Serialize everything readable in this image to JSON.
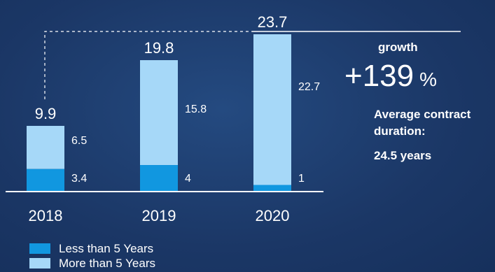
{
  "chart_data": {
    "type": "bar",
    "stacked": true,
    "categories": [
      "2018",
      "2019",
      "2020"
    ],
    "series": [
      {
        "name": "Less than 5 Years",
        "values": [
          3.4,
          4,
          1
        ],
        "color": "#1197e0"
      },
      {
        "name": "More than 5 Years",
        "values": [
          6.5,
          15.8,
          22.7
        ],
        "color": "#a6d8f8"
      }
    ],
    "totals": [
      "9.9",
      "19.8",
      "23.7"
    ],
    "segment_labels": {
      "lower": [
        "3.4",
        "4",
        "1"
      ],
      "upper": [
        "6.5",
        "15.8",
        "22.7"
      ]
    },
    "ylim": [
      0,
      23.7
    ],
    "legend_position": "bottom-left",
    "grid": false
  },
  "growth": {
    "label": "growth",
    "value": "+139",
    "unit": "%"
  },
  "contract": {
    "label": "Average contract duration:",
    "value": "24.5 years"
  },
  "legend": [
    {
      "label": "Less than 5 Years",
      "color": "#1197e0"
    },
    {
      "label": "More than 5 Years",
      "color": "#a6d8f8"
    }
  ]
}
